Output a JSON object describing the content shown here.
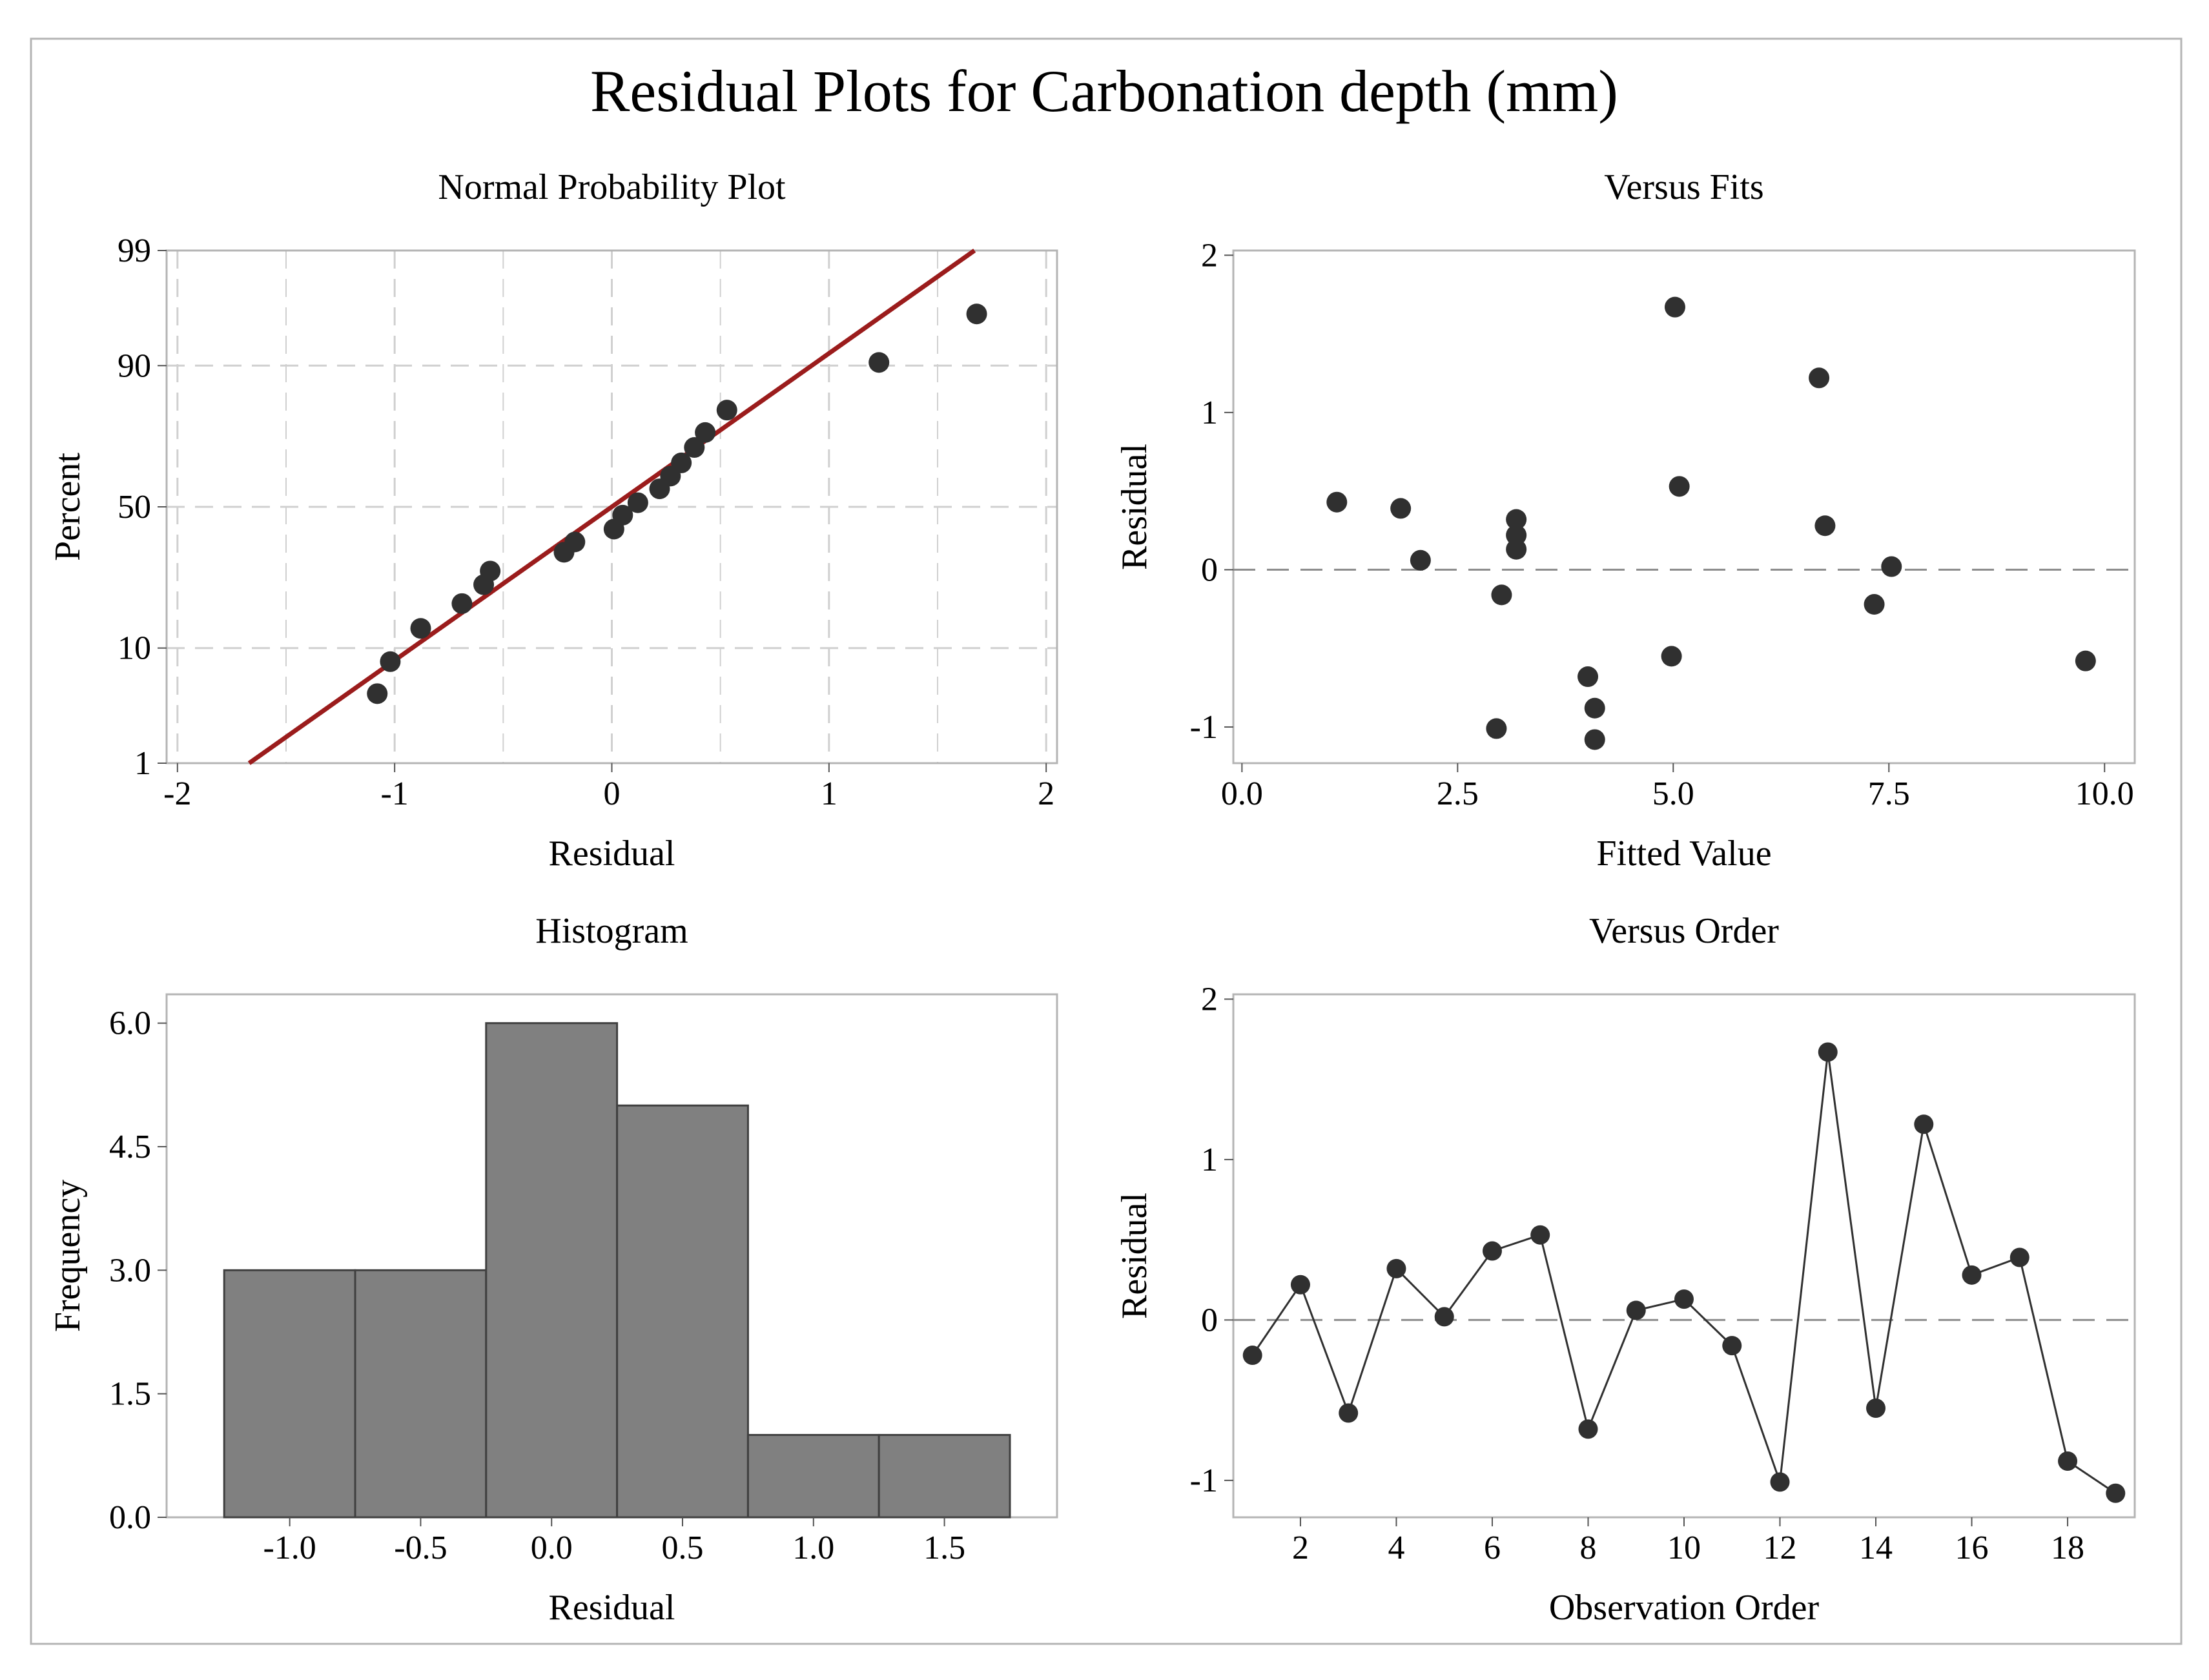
{
  "figure_title": "Residual Plots for Carbonation depth (mm)",
  "colors": {
    "background": "#ffffff",
    "frame": "#b4b4b4",
    "point": "#303030",
    "line": "#303030",
    "fit_line": "#9b1c1c",
    "bar_fill": "#808080",
    "bar_edge": "#404040",
    "grid": "#d0d0d0",
    "ref_line": "#8c8c8c"
  },
  "chart_data": [
    {
      "id": "normal-probability",
      "type": "scatter",
      "title": "Normal Probability Plot",
      "xlabel": "Residual",
      "ylabel": "Percent",
      "xlim": [
        -2.05,
        2.05
      ],
      "ylim_percent": [
        1,
        99
      ],
      "grid": true,
      "xticks": [
        -2,
        -1,
        0,
        1,
        2
      ],
      "xtick_labels": [
        "-2",
        "-1",
        "0",
        "1",
        "2"
      ],
      "yticks_percent": [
        1,
        10,
        50,
        90,
        99
      ],
      "ytick_labels": [
        "1",
        "10",
        "50",
        "90",
        "99"
      ],
      "minor_grid_percent": [
        5,
        20,
        30,
        40,
        60,
        70,
        80,
        95
      ],
      "fit_line": {
        "x1": -1.67,
        "p1": 1,
        "x2": 1.67,
        "p2": 99
      },
      "points": [
        {
          "x": -1.08,
          "p": 4.5
        },
        {
          "x": -1.02,
          "p": 8.0
        },
        {
          "x": -0.88,
          "p": 13.5
        },
        {
          "x": -0.69,
          "p": 19.0
        },
        {
          "x": -0.59,
          "p": 24.0
        },
        {
          "x": -0.56,
          "p": 28.0
        },
        {
          "x": -0.22,
          "p": 34.0
        },
        {
          "x": -0.17,
          "p": 37.5
        },
        {
          "x": 0.01,
          "p": 42.0
        },
        {
          "x": 0.05,
          "p": 47.0
        },
        {
          "x": 0.12,
          "p": 51.5
        },
        {
          "x": 0.22,
          "p": 56.5
        },
        {
          "x": 0.27,
          "p": 61.0
        },
        {
          "x": 0.32,
          "p": 65.5
        },
        {
          "x": 0.38,
          "p": 70.5
        },
        {
          "x": 0.43,
          "p": 75.0
        },
        {
          "x": 0.53,
          "p": 81.0
        },
        {
          "x": 1.23,
          "p": 90.5
        },
        {
          "x": 1.68,
          "p": 96.0
        }
      ]
    },
    {
      "id": "versus-fits",
      "type": "scatter",
      "title": "Versus Fits",
      "xlabel": "Fitted Value",
      "ylabel": "Residual",
      "xlim": [
        -0.1,
        10.35
      ],
      "ylim": [
        -1.23,
        2.03
      ],
      "grid": false,
      "reference_line_y": 0,
      "xticks": [
        0,
        2.5,
        5,
        7.5,
        10
      ],
      "xtick_labels": [
        "0.0",
        "2.5",
        "5.0",
        "7.5",
        "10.0"
      ],
      "yticks": [
        -1,
        0,
        1,
        2
      ],
      "ytick_labels": [
        "-1",
        "0",
        "1",
        "2"
      ],
      "points": [
        {
          "x": 1.1,
          "y": 0.43
        },
        {
          "x": 1.84,
          "y": 0.39
        },
        {
          "x": 2.07,
          "y": 0.06
        },
        {
          "x": 2.95,
          "y": -1.01
        },
        {
          "x": 3.01,
          "y": -0.16
        },
        {
          "x": 3.18,
          "y": 0.32
        },
        {
          "x": 3.18,
          "y": 0.22
        },
        {
          "x": 3.18,
          "y": 0.13
        },
        {
          "x": 4.01,
          "y": -0.68
        },
        {
          "x": 4.09,
          "y": -0.88
        },
        {
          "x": 4.09,
          "y": -1.08
        },
        {
          "x": 4.98,
          "y": -0.55
        },
        {
          "x": 5.02,
          "y": 1.67
        },
        {
          "x": 5.07,
          "y": 0.53
        },
        {
          "x": 6.69,
          "y": 1.22
        },
        {
          "x": 6.76,
          "y": 0.28
        },
        {
          "x": 7.33,
          "y": -0.22
        },
        {
          "x": 7.53,
          "y": 0.02
        },
        {
          "x": 9.78,
          "y": -0.58
        }
      ]
    },
    {
      "id": "histogram",
      "type": "bar",
      "title": "Histogram",
      "xlabel": "Residual",
      "ylabel": "Frequency",
      "xlim": [
        -1.47,
        1.93
      ],
      "ylim": [
        0,
        6.35
      ],
      "grid": false,
      "bin_width": 0.5,
      "bin_centers": [
        -1.0,
        -0.5,
        0.0,
        0.5,
        1.0,
        1.5
      ],
      "values": [
        3,
        3,
        6,
        5,
        1,
        1
      ],
      "xticks": [
        -1.0,
        -0.5,
        0.0,
        0.5,
        1.0,
        1.5
      ],
      "xtick_labels": [
        "-1.0",
        "-0.5",
        "0.0",
        "0.5",
        "1.0",
        "1.5"
      ],
      "yticks": [
        0,
        1.5,
        3,
        4.5,
        6
      ],
      "ytick_labels": [
        "0.0",
        "1.5",
        "3.0",
        "4.5",
        "6.0"
      ]
    },
    {
      "id": "versus-order",
      "type": "line",
      "title": "Versus Order",
      "xlabel": "Observation Order",
      "ylabel": "Residual",
      "xlim": [
        0.6,
        19.4
      ],
      "ylim": [
        -1.23,
        2.03
      ],
      "grid": false,
      "reference_line_y": 0,
      "markers": true,
      "xticks": [
        2,
        4,
        6,
        8,
        10,
        12,
        14,
        16,
        18
      ],
      "xtick_labels": [
        "2",
        "4",
        "6",
        "8",
        "10",
        "12",
        "14",
        "16",
        "18"
      ],
      "yticks": [
        -1,
        0,
        1,
        2
      ],
      "ytick_labels": [
        "-1",
        "0",
        "1",
        "2"
      ],
      "x": [
        1,
        2,
        3,
        4,
        5,
        6,
        7,
        8,
        9,
        10,
        11,
        12,
        13,
        14,
        15,
        16,
        17,
        18,
        19
      ],
      "values": [
        -0.22,
        0.22,
        -0.58,
        0.32,
        0.02,
        0.43,
        0.53,
        -0.68,
        0.06,
        0.13,
        -0.16,
        -1.01,
        1.67,
        -0.55,
        1.22,
        0.28,
        0.39,
        -0.88,
        -1.08
      ]
    }
  ]
}
